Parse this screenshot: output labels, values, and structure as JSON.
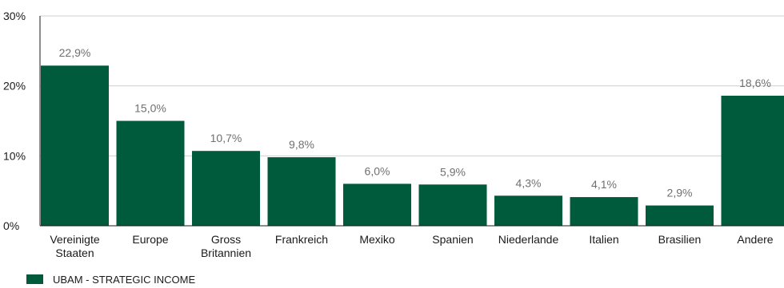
{
  "chart_data": {
    "type": "bar",
    "categories": [
      [
        "Vereinigte",
        "Staaten"
      ],
      [
        "Europe"
      ],
      [
        "Gross",
        "Britannien"
      ],
      [
        "Frankreich"
      ],
      [
        "Mexiko"
      ],
      [
        "Spanien"
      ],
      [
        "Niederlande"
      ],
      [
        "Italien"
      ],
      [
        "Brasilien"
      ],
      [
        "Andere"
      ]
    ],
    "values": [
      22.9,
      15.0,
      10.7,
      9.8,
      6.0,
      5.9,
      4.3,
      4.1,
      2.9,
      18.6
    ],
    "value_labels": [
      "22,9%",
      "15,0%",
      "10,7%",
      "9,8%",
      "6,0%",
      "5,9%",
      "4,3%",
      "4,1%",
      "2,9%",
      "18,6%"
    ],
    "y_ticks": [
      0,
      10,
      20,
      30
    ],
    "y_tick_labels": [
      "0%",
      "10%",
      "20%",
      "30%"
    ],
    "ylim": [
      0,
      30
    ],
    "grid": true,
    "series": [
      {
        "name": "UBAM - STRATEGIC INCOME",
        "color": "#005a3c"
      }
    ],
    "colors": {
      "bar": "#005a3c",
      "grid": "#cfcfcf",
      "axis": "#1a1a1a",
      "value_label": "#707070"
    },
    "legend_position": "bottom-left"
  }
}
